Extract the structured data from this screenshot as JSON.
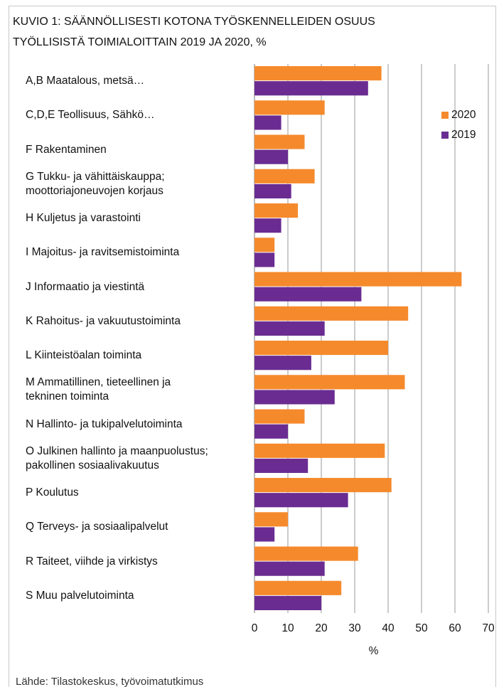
{
  "chart_data": {
    "type": "bar",
    "orientation": "horizontal",
    "title": "KUVIO 1: SÄÄNNÖLLISESTI KOTONA TYÖSKENNELLEIDEN OSUUS\nTYÖLLISISTÄ TOIMIALOITTAIN 2019 JA 2020, %",
    "x_label": "%",
    "source": "Lähde: Tilastokeskus, työvoimatutkimus",
    "categories": [
      "A,B Maatalous, metsä…",
      "C,D,E Teollisuus, Sähkö…",
      "F Rakentaminen",
      "G Tukku- ja vähittäiskauppa;\nmoottoriajoneuvojen korjaus",
      "H Kuljetus ja varastointi",
      "I Majoitus- ja ravitsemistoiminta",
      "J Informaatio ja viestintä",
      "K Rahoitus- ja vakuutustoiminta",
      "L Kiinteistöalan toiminta",
      "M Ammatillinen, tieteellinen ja\ntekninen toiminta",
      "N Hallinto- ja tukipalvelutoiminta",
      "O Julkinen hallinto ja maanpuolustus;\npakollinen sosiaalivakuutus",
      "P Koulutus",
      "Q Terveys- ja sosiaalipalvelut",
      "R Taiteet, viihde ja virkistys",
      "S Muu palvelutoiminta"
    ],
    "series": [
      {
        "name": "2020",
        "color": "#f58a2c",
        "values": [
          38,
          21,
          15,
          18,
          13,
          6,
          62,
          46,
          40,
          45,
          15,
          39,
          41,
          10,
          31,
          26
        ]
      },
      {
        "name": "2019",
        "color": "#6a2c91",
        "values": [
          34,
          8,
          10,
          11,
          8,
          6,
          32,
          21,
          17,
          24,
          10,
          16,
          28,
          6,
          21,
          20
        ]
      }
    ],
    "xlim": [
      0,
      70
    ],
    "xticks": [
      0,
      10,
      20,
      30,
      40,
      50,
      60,
      70
    ],
    "grid": true,
    "legend": "upper right"
  }
}
